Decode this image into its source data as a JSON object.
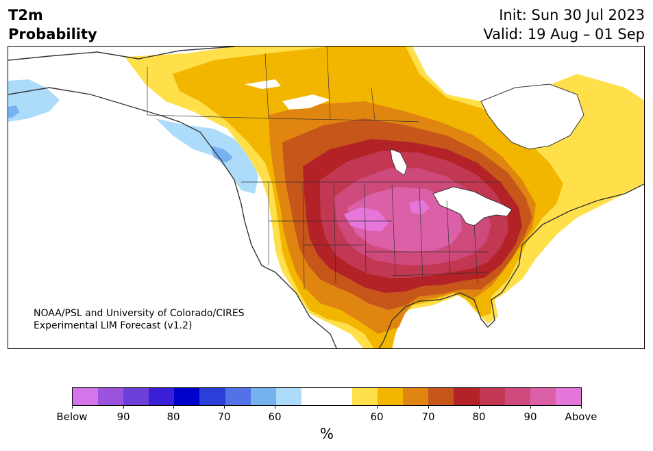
{
  "title": {
    "left_line1": "T2m",
    "left_line2": "Probability",
    "right_line1": "Init: Sun 30 Jul 2023",
    "right_line2": "Valid: 19 Aug – 01 Sep"
  },
  "credit": {
    "line1": "NOAA/PSL and University of Colorado/CIRES",
    "line2": "Experimental LIM Forecast (v1.2)"
  },
  "colorbar": {
    "colors": [
      "#d575ea",
      "#9b52dc",
      "#6c3fd8",
      "#3a1fd6",
      "#0000cc",
      "#2a3fd8",
      "#5272e6",
      "#77b2f0",
      "#acdcfa",
      "#ffffff",
      "#ffffff",
      "#ffe04a",
      "#f2b600",
      "#df8510",
      "#c6561a",
      "#b22226",
      "#c23752",
      "#cf4a7c",
      "#db60a8",
      "#e776db"
    ],
    "labels": [
      "Below",
      "90",
      "80",
      "70",
      "60",
      "60",
      "70",
      "80",
      "90",
      "Above"
    ],
    "unit": "%"
  },
  "map": {
    "ocean_color": "#ffffff",
    "border_color": "#333333",
    "probability_colors": {
      "above_50": "#ffe04a",
      "above_60": "#f2b600",
      "above_65": "#df8510",
      "above_70": "#c6561a",
      "above_75": "#b22226",
      "above_80": "#c23752",
      "above_85": "#cf4a7c",
      "above_90": "#db60a8",
      "above_95": "#e776db",
      "below_50": "#acdcfa",
      "below_60": "#77b2f0",
      "below_65": "#5272e6"
    }
  }
}
